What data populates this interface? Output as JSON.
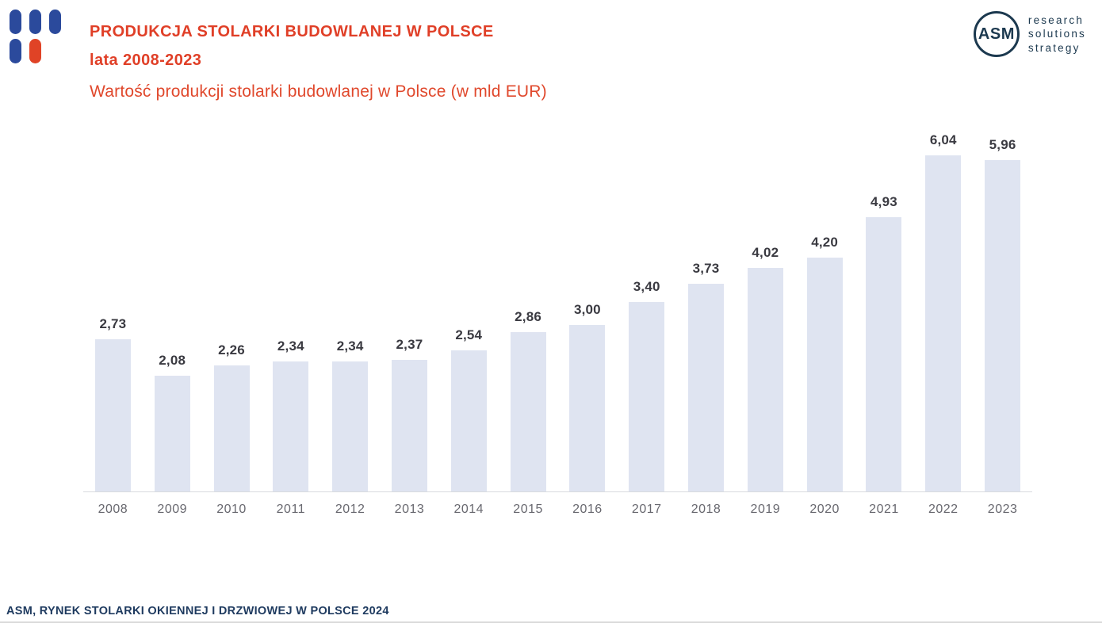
{
  "header": {
    "title_line1": "PRODUKCJA STOLARKI BUDOWLANEJ W POLSCE",
    "title_line2": "lata 2008-2023"
  },
  "logo": {
    "circle_text": "ASM",
    "tagline": [
      "research",
      "solutions",
      "strategy"
    ]
  },
  "chart_data": {
    "type": "bar",
    "title": "Wartość produkcji stolarki budowlanej w Polsce (w mld EUR)",
    "categories": [
      "2008",
      "2009",
      "2010",
      "2011",
      "2012",
      "2013",
      "2014",
      "2015",
      "2016",
      "2017",
      "2018",
      "2019",
      "2020",
      "2021",
      "2022",
      "2023"
    ],
    "values": [
      2.73,
      2.08,
      2.26,
      2.34,
      2.34,
      2.37,
      2.54,
      2.86,
      3.0,
      3.4,
      3.73,
      4.02,
      4.2,
      4.93,
      6.04,
      5.96
    ],
    "value_labels": [
      "2,73",
      "2,08",
      "2,26",
      "2,34",
      "2,34",
      "2,37",
      "2,54",
      "2,86",
      "3,00",
      "3,40",
      "3,73",
      "4,02",
      "4,20",
      "4,93",
      "6,04",
      "5,96"
    ],
    "xlabel": "",
    "ylabel": "",
    "ylim": [
      0,
      6.7
    ],
    "grid": false,
    "legend": false,
    "bar_color": "#DFE4F1",
    "value_label_position": "above"
  },
  "footer": {
    "source": "ASM, RYNEK STOLARKI OKIENNEJ I DRZWIOWEJ W POLSCE 2024"
  },
  "colors": {
    "accent_red": "#E03F27",
    "brand_blue": "#2B4A9C",
    "brand_navy": "#1C394F",
    "bar_fill": "#DFE4F1",
    "axis_line": "#D8DADE",
    "x_label_gray": "#68686F",
    "value_label_dark": "#3A3A41"
  }
}
